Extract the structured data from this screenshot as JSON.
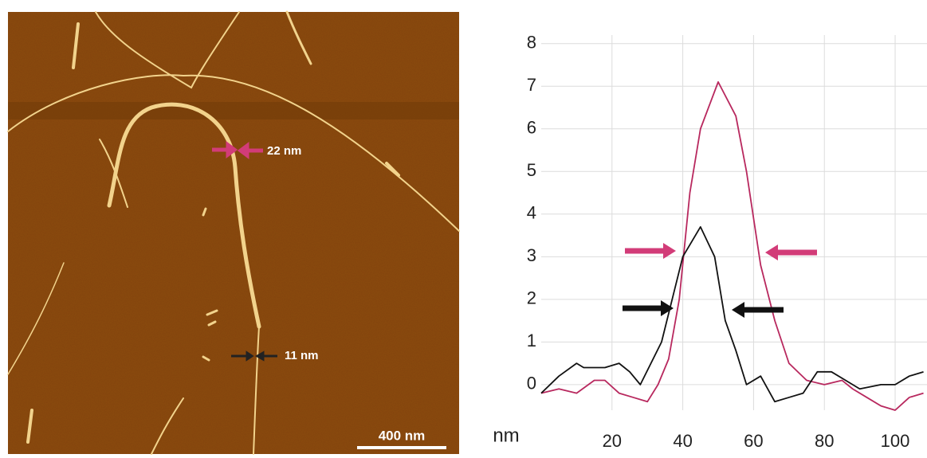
{
  "image": {
    "annotations": [
      "22 nm",
      "11 nm"
    ],
    "scale_bar": "400 nm"
  },
  "chart_data": {
    "type": "line",
    "unit_label": "nm",
    "xlim": [
      0,
      109
    ],
    "xticks": [
      20,
      40,
      60,
      80,
      100
    ],
    "ylim": [
      -0.6,
      8.2
    ],
    "yticks": [
      0,
      1,
      2,
      3,
      4,
      5,
      6,
      7,
      8
    ],
    "grid": true,
    "series": [
      {
        "color": "#b8285e",
        "x": [
          0,
          5,
          10,
          15,
          18,
          22,
          26,
          30,
          33,
          36,
          39,
          42,
          45,
          50,
          55,
          58,
          62,
          66,
          70,
          75,
          80,
          85,
          88,
          92,
          96,
          100,
          104,
          108
        ],
        "values": [
          -0.2,
          -0.1,
          -0.2,
          0.1,
          0.1,
          -0.2,
          -0.3,
          -0.4,
          0.0,
          0.6,
          2.0,
          4.5,
          6.0,
          7.1,
          6.3,
          5.0,
          2.8,
          1.5,
          0.5,
          0.1,
          0.0,
          0.1,
          -0.1,
          -0.3,
          -0.5,
          -0.6,
          -0.3,
          -0.2
        ]
      },
      {
        "color": "#111111",
        "x": [
          0,
          5,
          10,
          12,
          15,
          18,
          22,
          25,
          28,
          31,
          34,
          37,
          40,
          45,
          49,
          52,
          55,
          58,
          62,
          66,
          70,
          74,
          78,
          82,
          86,
          90,
          96,
          100,
          104,
          108
        ],
        "values": [
          -0.2,
          0.2,
          0.5,
          0.4,
          0.4,
          0.4,
          0.5,
          0.3,
          0.0,
          0.5,
          1.0,
          2.0,
          3.0,
          3.7,
          3.0,
          1.5,
          0.8,
          0.0,
          0.2,
          -0.4,
          -0.3,
          -0.2,
          0.3,
          0.3,
          0.1,
          -0.1,
          0.0,
          0.0,
          0.2,
          0.3
        ]
      }
    ]
  }
}
